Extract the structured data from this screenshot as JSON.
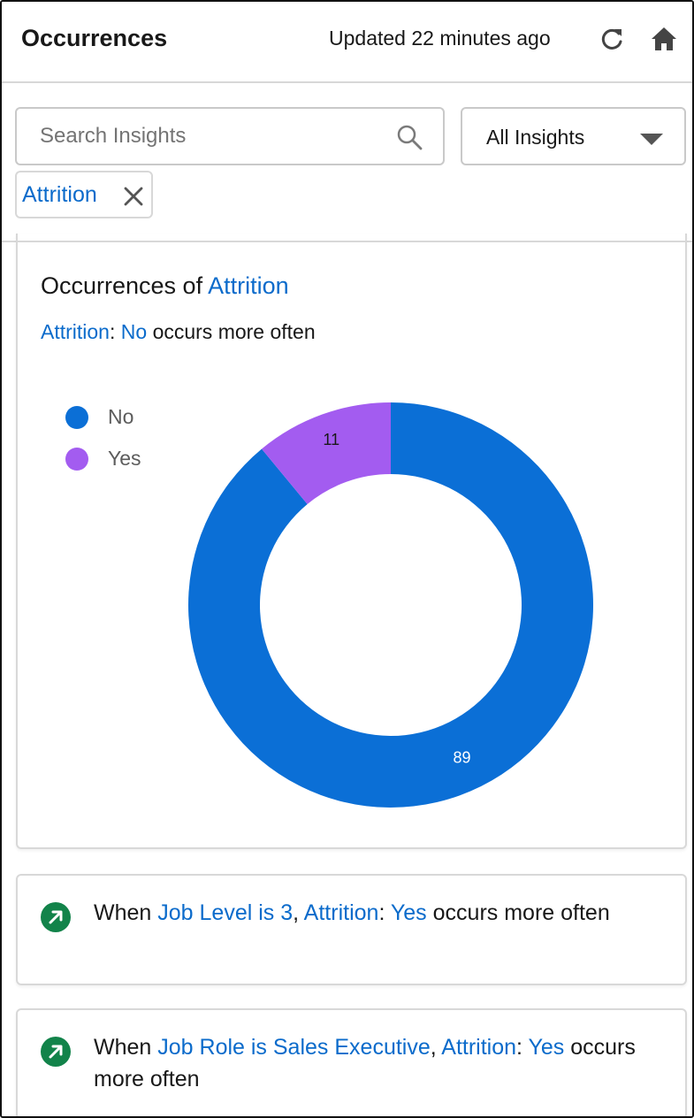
{
  "header": {
    "title": "Occurrences",
    "updated": "Updated 22 minutes ago",
    "refresh_icon": "refresh-icon",
    "home_icon": "home-icon"
  },
  "filters": {
    "search_placeholder": "Search Insights",
    "search_value": "",
    "select_value": "All Insights",
    "pill_label": "Attrition"
  },
  "main_card": {
    "title_prefix": "Occurrences of",
    "title_field": "Attrition",
    "sub_field": "Attrition",
    "sub_sep": ":",
    "sub_value": "No",
    "sub_suffix": "occurs more often"
  },
  "chart_data": {
    "type": "pie",
    "donut": true,
    "categories": [
      "No",
      "Yes"
    ],
    "values": [
      89,
      11
    ],
    "colors": [
      "#0b6fd6",
      "#a35cf0"
    ],
    "legend_position": "top-left"
  },
  "insights": [
    {
      "icon": "trend-up-icon",
      "t1": "When",
      "l1": "Job Level is 3",
      "t2": ",",
      "l2": "Attrition",
      "t3": ":",
      "l3": "Yes",
      "t4": "occurs more often"
    },
    {
      "icon": "trend-up-icon",
      "t1": "When",
      "l1": "Job Role is Sales Executive",
      "t2": ",",
      "l2": "Attrition",
      "t3": ":",
      "l3": "Yes",
      "t4": "occurs more often"
    }
  ],
  "colors": {
    "link": "#0b6bcb",
    "trend_badge": "#12834a",
    "border": "#d8d8d8"
  }
}
